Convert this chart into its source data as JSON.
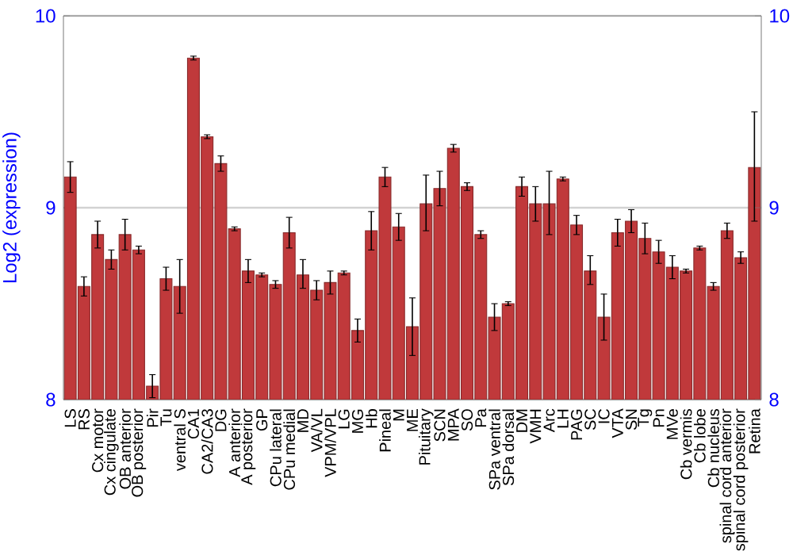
{
  "chart_data": {
    "type": "bar",
    "ylabel": "Log2 (expression)",
    "categories": [
      "LS",
      "RS",
      "Cx motor",
      "Cx cingulate",
      "OB anterior",
      "OB posterior",
      "Pir",
      "Tu",
      "ventral S",
      "CA1",
      "CA2/CA3",
      "DG",
      "A anterior",
      "A posterior",
      "GP",
      "CPu lateral",
      "CPu medial",
      "MD",
      "VA/VL",
      "VPM/VPL",
      "LG",
      "MG",
      "Hb",
      "Pineal",
      "M",
      "ME",
      "Pituitary",
      "SCN",
      "MPA",
      "SO",
      "Pa",
      "SPa ventral",
      "SPa dorsal",
      "DM",
      "VMH",
      "Arc",
      "LH",
      "PAG",
      "SC",
      "IC",
      "VTA",
      "SN",
      "Tg",
      "Pn",
      "MVe",
      "Cb vermis",
      "Cb lobe",
      "Cb nucleus",
      "spinal cord anterior",
      "spinal cord posterior",
      "Retina"
    ],
    "values": [
      9.16,
      8.59,
      8.86,
      8.73,
      8.86,
      8.78,
      8.07,
      8.63,
      8.59,
      9.78,
      9.37,
      9.23,
      8.89,
      8.67,
      8.65,
      8.6,
      8.87,
      8.65,
      8.57,
      8.61,
      8.66,
      8.36,
      8.88,
      9.16,
      8.9,
      8.38,
      9.02,
      9.1,
      9.31,
      9.11,
      8.86,
      8.43,
      8.5,
      9.11,
      9.02,
      9.02,
      9.15,
      8.91,
      8.67,
      8.43,
      8.87,
      8.93,
      8.84,
      8.77,
      8.69,
      8.67,
      8.79,
      8.59,
      8.88,
      8.74,
      9.21
    ],
    "errors": [
      0.08,
      0.05,
      0.07,
      0.05,
      0.08,
      0.02,
      0.06,
      0.06,
      0.14,
      0.01,
      0.01,
      0.04,
      0.01,
      0.06,
      0.01,
      0.02,
      0.08,
      [
        8.58,
        8.73
      ],
      0.05,
      0.06,
      0.01,
      0.06,
      0.1,
      0.05,
      0.07,
      0.15,
      [
        8.88,
        9.17
      ],
      [
        9.01,
        9.19
      ],
      0.02,
      0.02,
      0.02,
      0.07,
      0.01,
      0.05,
      0.09,
      [
        8.86,
        9.19
      ],
      0.01,
      0.05,
      [
        8.6,
        8.75
      ],
      0.12,
      0.07,
      0.06,
      0.08,
      0.06,
      0.06,
      0.01,
      0.01,
      0.02,
      0.04,
      0.03,
      [
        8.93,
        9.5
      ]
    ],
    "color": "#c0393b",
    "ylim": [
      8,
      10
    ],
    "yticks": [
      8,
      9,
      10
    ],
    "y2lim": [
      8,
      10
    ],
    "y2ticks": [
      8,
      9,
      10
    ],
    "grid": "y"
  }
}
